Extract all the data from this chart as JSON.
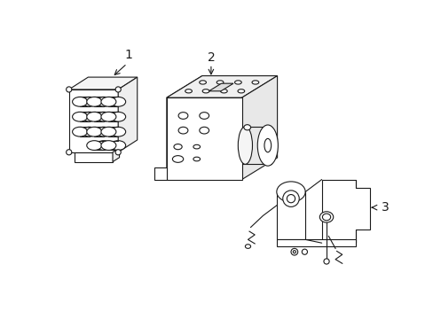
{
  "bg_color": "#ffffff",
  "line_color": "#1a1a1a",
  "lw": 0.8,
  "label1": "1",
  "label2": "2",
  "label3": "3",
  "fig_width": 4.89,
  "fig_height": 3.6,
  "dpi": 100
}
